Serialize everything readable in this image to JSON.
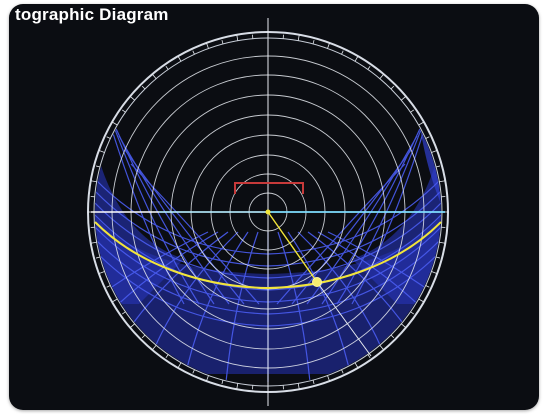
{
  "title": "tographic Diagram",
  "info_lines": [
    "",
    "",
    "",
    ""
  ],
  "footer_lines": [
    "",
    "",
    ""
  ],
  "compass": {
    "north_label": "",
    "south_label": "",
    "east_label": "",
    "west_label": ""
  },
  "sun_path_colors": {
    "grid": "#ffffff",
    "sky_mask": "#3d48d8",
    "horizon": "#5fd7ff",
    "path": "#f2e53a"
  },
  "selected_point_label": ""
}
